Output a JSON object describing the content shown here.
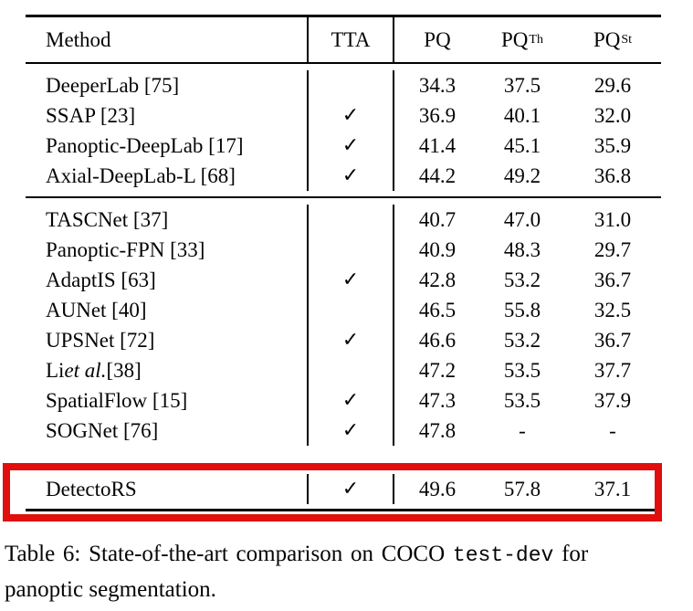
{
  "table": {
    "checkmark": "✓",
    "columns": [
      {
        "key": "method",
        "label": "Method",
        "sup": ""
      },
      {
        "key": "tta",
        "label": "TTA",
        "sup": ""
      },
      {
        "key": "pq",
        "label": "PQ",
        "sup": ""
      },
      {
        "key": "pqth",
        "label": "PQ",
        "sup": "Th"
      },
      {
        "key": "pqst",
        "label": "PQ",
        "sup": "St"
      }
    ],
    "groups": [
      {
        "rows": [
          {
            "method": "DeeperLab [75]",
            "tta": false,
            "pq": "34.3",
            "pqth": "37.5",
            "pqst": "29.6"
          },
          {
            "method": "SSAP [23]",
            "tta": true,
            "pq": "36.9",
            "pqth": "40.1",
            "pqst": "32.0"
          },
          {
            "method": "Panoptic-DeepLab [17]",
            "tta": true,
            "pq": "41.4",
            "pqth": "45.1",
            "pqst": "35.9"
          },
          {
            "method": "Axial-DeepLab-L [68]",
            "tta": true,
            "pq": "44.2",
            "pqth": "49.2",
            "pqst": "36.8"
          }
        ]
      },
      {
        "rows": [
          {
            "method": "TASCNet [37]",
            "tta": false,
            "pq": "40.7",
            "pqth": "47.0",
            "pqst": "31.0"
          },
          {
            "method": "Panoptic-FPN [33]",
            "tta": false,
            "pq": "40.9",
            "pqth": "48.3",
            "pqst": "29.7"
          },
          {
            "method": "AdaptIS [63]",
            "tta": true,
            "pq": "42.8",
            "pqth": "53.2",
            "pqst": "36.7"
          },
          {
            "method": "AUNet [40]",
            "tta": false,
            "pq": "46.5",
            "pqth": "55.8",
            "pqst": "32.5"
          },
          {
            "method": "UPSNet [72]",
            "tta": true,
            "pq": "46.6",
            "pqth": "53.2",
            "pqst": "36.7"
          },
          {
            "method": "Li |et al.| [38]",
            "tta": false,
            "pq": "47.2",
            "pqth": "53.5",
            "pqst": "37.7"
          },
          {
            "method": "SpatialFlow [15]",
            "tta": true,
            "pq": "47.3",
            "pqth": "53.5",
            "pqst": "37.9"
          },
          {
            "method": "SOGNet [76]",
            "tta": true,
            "pq": "47.8",
            "pqth": "-",
            "pqst": "-"
          }
        ]
      },
      {
        "highlighted": true,
        "rows": [
          {
            "method": "DetectoRS",
            "tta": true,
            "pq": "49.6",
            "pqth": "57.8",
            "pqst": "37.1"
          }
        ]
      }
    ]
  },
  "caption": {
    "line1_prefix": "Table 6: State-of-the-art comparison on COCO ",
    "line1_code": "test-dev",
    "line1_suffix": " for",
    "line2": "panoptic segmentation."
  },
  "colors": {
    "highlight": "#e00e0e",
    "rule": "#000000"
  }
}
